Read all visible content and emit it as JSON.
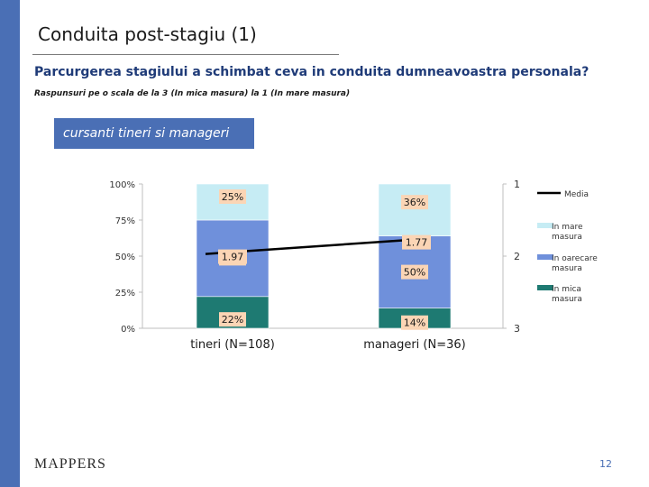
{
  "page": {
    "title": "Conduita post-stagiu (1)",
    "question": "Parcurgerea stagiului a schimbat ceva in conduita dumneavoastra personala?",
    "scale_note": "Raspunsuri pe o scala de la 3 (In mica masura) la 1 (In mare masura)",
    "group_label": "cursanti tineri si manageri",
    "logo": "MAPPERS",
    "page_number": "12"
  },
  "colors": {
    "in_mare_masura": "#c6ecf4",
    "in_oarecare_masura": "#6f90db",
    "in_mica_masura": "#1e7a72",
    "media_line": "#000000",
    "label_box": "#fbd5b5",
    "accent": "#4a6fb5"
  },
  "chart_data": {
    "type": "bar",
    "stacked": true,
    "categories": [
      "tineri (N=108)",
      "manageri (N=36)"
    ],
    "series": [
      {
        "name": "In mica masura",
        "values": [
          22,
          14
        ],
        "labels": [
          "22%",
          "14%"
        ]
      },
      {
        "name": "In oarecare masura",
        "values": [
          53,
          50
        ],
        "labels": [
          "53%",
          "50%"
        ]
      },
      {
        "name": "In mare masura",
        "values": [
          25,
          36
        ],
        "labels": [
          "25%",
          "36%"
        ]
      }
    ],
    "line": {
      "name": "Media",
      "values": [
        1.97,
        1.77
      ],
      "labels": [
        "1.97",
        "1.77"
      ]
    },
    "ylim": [
      0,
      100
    ],
    "y_ticks": [
      "0%",
      "25%",
      "50%",
      "75%",
      "100%"
    ],
    "y2_ticks": [
      "1",
      "2",
      "3"
    ],
    "y2lim": [
      3,
      1
    ],
    "legend": [
      "Media",
      "In mare masura",
      "In oarecare masura",
      "In mica masura"
    ],
    "legend_position": "right"
  }
}
